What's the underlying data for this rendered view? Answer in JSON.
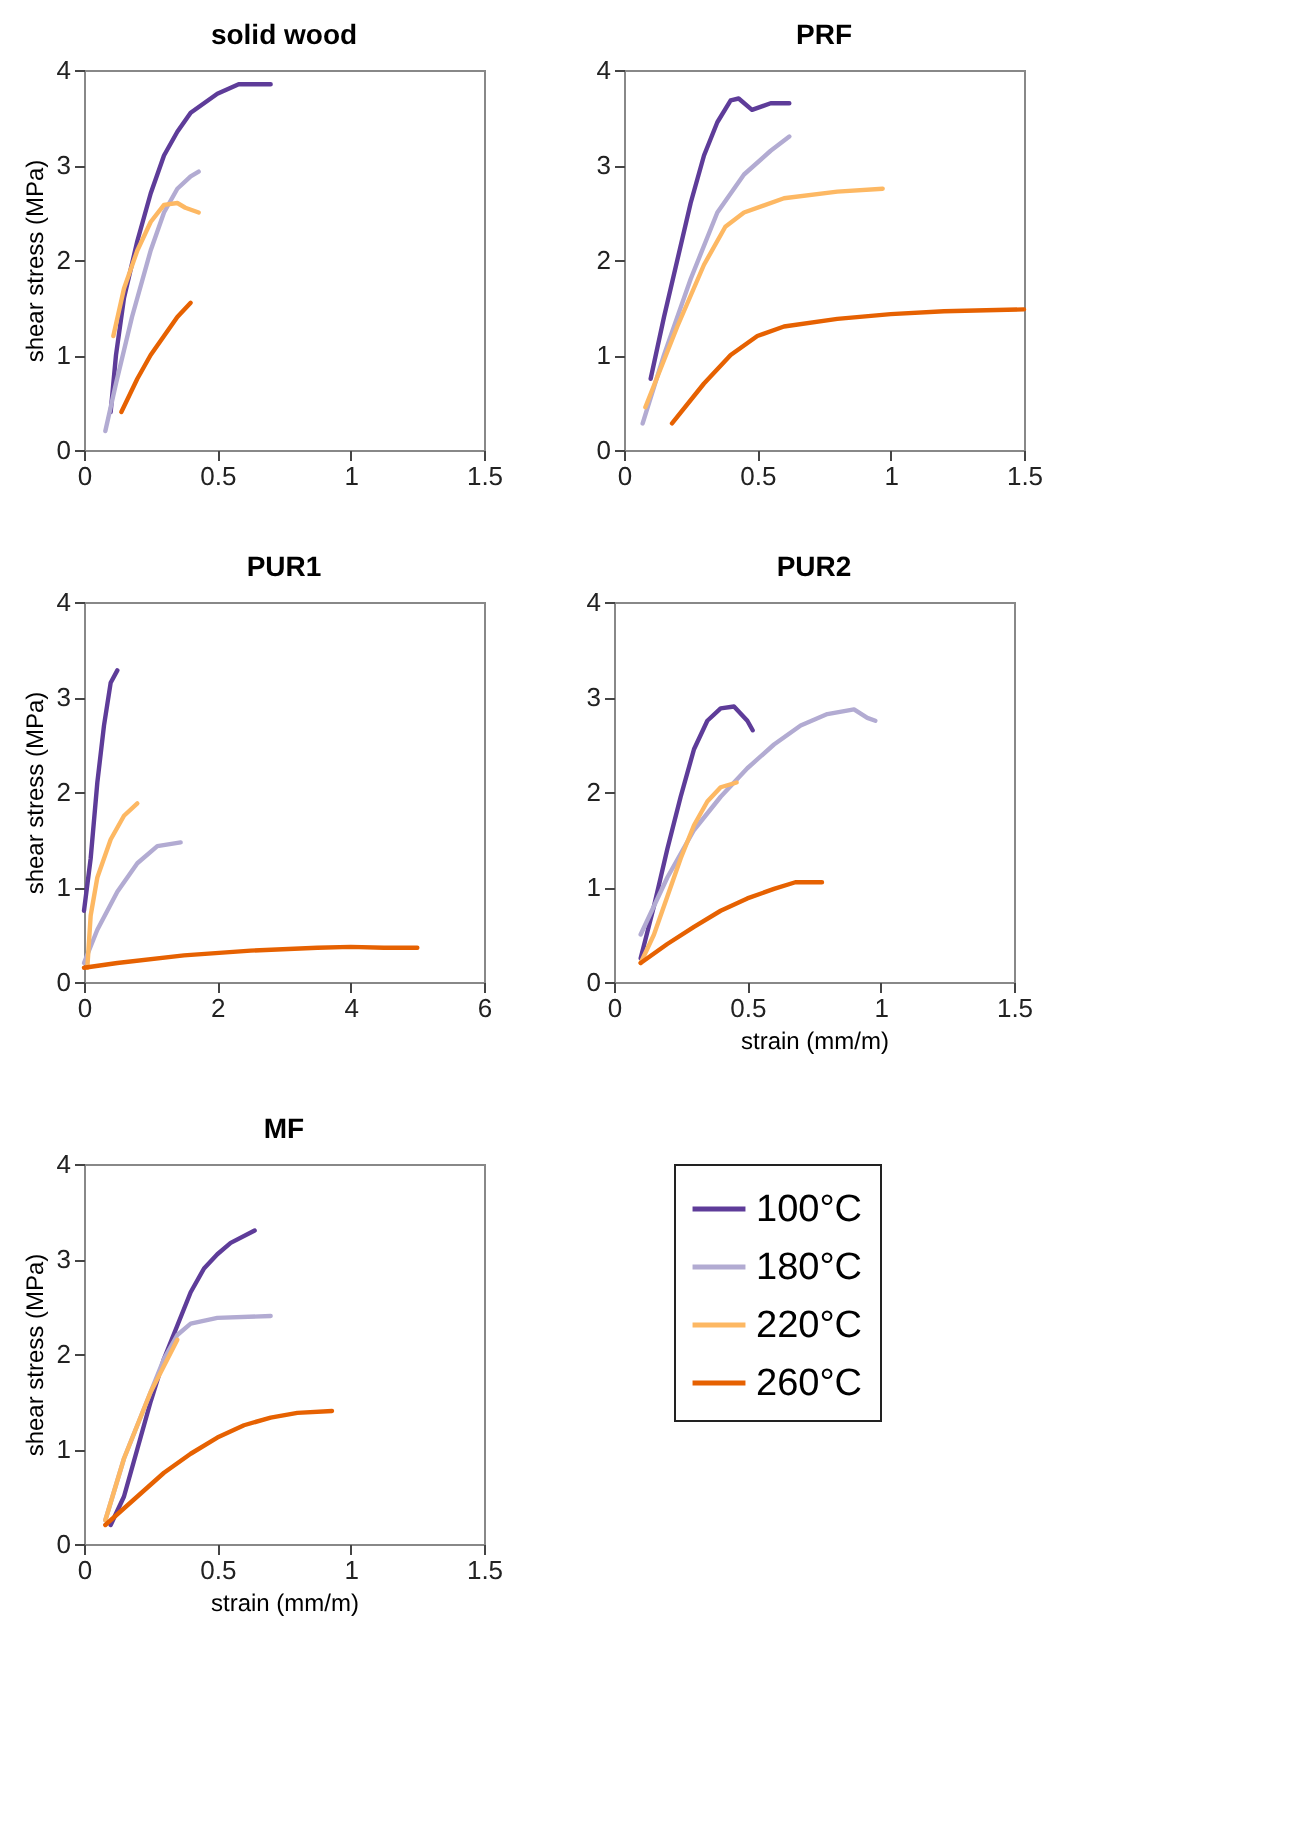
{
  "chart_data": [
    {
      "type": "line",
      "title": "solid wood",
      "ylabel": "shear stress (MPa)",
      "xlim": [
        0,
        1.5
      ],
      "xticks": [
        0,
        0.5,
        1,
        1.5
      ],
      "ylim": [
        0,
        4
      ],
      "yticks": [
        0,
        1,
        2,
        3,
        4
      ],
      "grid": false,
      "legend": false,
      "line_style": "solid",
      "series": [
        {
          "color": "#5e3c99",
          "x": [
            0.1,
            0.12,
            0.15,
            0.2,
            0.25,
            0.3,
            0.35,
            0.4,
            0.5,
            0.58,
            0.7
          ],
          "values": [
            0.4,
            1.0,
            1.6,
            2.2,
            2.7,
            3.1,
            3.35,
            3.55,
            3.75,
            3.85,
            3.85
          ]
        },
        {
          "color": "#b2abd2",
          "x": [
            0.08,
            0.12,
            0.18,
            0.25,
            0.3,
            0.35,
            0.4,
            0.43
          ],
          "values": [
            0.2,
            0.7,
            1.4,
            2.1,
            2.5,
            2.75,
            2.88,
            2.93
          ]
        },
        {
          "color": "#fdb863",
          "x": [
            0.11,
            0.15,
            0.2,
            0.25,
            0.3,
            0.35,
            0.38,
            0.43
          ],
          "values": [
            1.2,
            1.7,
            2.1,
            2.4,
            2.58,
            2.6,
            2.55,
            2.5
          ]
        },
        {
          "color": "#e66101",
          "x": [
            0.14,
            0.2,
            0.25,
            0.3,
            0.35,
            0.4
          ],
          "values": [
            0.4,
            0.75,
            1.0,
            1.2,
            1.4,
            1.55
          ]
        }
      ]
    },
    {
      "type": "line",
      "title": "PRF",
      "xlim": [
        0,
        1.5
      ],
      "xticks": [
        0,
        0.5,
        1,
        1.5
      ],
      "ylim": [
        0,
        4
      ],
      "yticks": [
        0,
        1,
        2,
        3,
        4
      ],
      "grid": false,
      "legend": false,
      "line_style": "solid",
      "series": [
        {
          "color": "#5e3c99",
          "x": [
            0.1,
            0.15,
            0.2,
            0.25,
            0.3,
            0.35,
            0.4,
            0.43,
            0.48,
            0.55,
            0.62
          ],
          "values": [
            0.75,
            1.4,
            2.0,
            2.6,
            3.1,
            3.45,
            3.68,
            3.7,
            3.58,
            3.65,
            3.65
          ]
        },
        {
          "color": "#b2abd2",
          "x": [
            0.07,
            0.15,
            0.25,
            0.35,
            0.45,
            0.55,
            0.62
          ],
          "values": [
            0.28,
            1.0,
            1.8,
            2.5,
            2.9,
            3.15,
            3.3
          ]
        },
        {
          "color": "#fdb863",
          "x": [
            0.08,
            0.2,
            0.3,
            0.38,
            0.45,
            0.6,
            0.8,
            0.97
          ],
          "values": [
            0.45,
            1.3,
            1.95,
            2.35,
            2.5,
            2.65,
            2.72,
            2.75
          ]
        },
        {
          "color": "#e66101",
          "x": [
            0.18,
            0.3,
            0.4,
            0.5,
            0.6,
            0.8,
            1.0,
            1.2,
            1.5
          ],
          "values": [
            0.28,
            0.7,
            1.0,
            1.2,
            1.3,
            1.38,
            1.43,
            1.46,
            1.48
          ]
        }
      ]
    },
    {
      "type": "line",
      "title": "PUR1",
      "ylabel": "shear stress (MPa)",
      "xlim": [
        0,
        6
      ],
      "xticks": [
        0,
        2,
        4,
        6
      ],
      "ylim": [
        0,
        4
      ],
      "yticks": [
        0,
        1,
        2,
        3,
        4
      ],
      "grid": false,
      "legend": false,
      "line_style": "solid",
      "series": [
        {
          "color": "#5e3c99",
          "x": [
            0.0,
            0.1,
            0.2,
            0.3,
            0.4,
            0.5
          ],
          "values": [
            0.75,
            1.3,
            2.1,
            2.7,
            3.15,
            3.28
          ]
        },
        {
          "color": "#b2abd2",
          "x": [
            0.0,
            0.2,
            0.5,
            0.8,
            1.1,
            1.45
          ],
          "values": [
            0.2,
            0.55,
            0.95,
            1.25,
            1.43,
            1.47
          ]
        },
        {
          "color": "#fdb863",
          "x": [
            0.05,
            0.1,
            0.2,
            0.4,
            0.6,
            0.8
          ],
          "values": [
            0.15,
            0.7,
            1.1,
            1.5,
            1.75,
            1.88
          ]
        },
        {
          "color": "#e66101",
          "x": [
            0,
            0.5,
            1.5,
            2.5,
            3.5,
            4,
            4.5,
            5
          ],
          "values": [
            0.15,
            0.2,
            0.28,
            0.33,
            0.36,
            0.37,
            0.36,
            0.36
          ]
        }
      ]
    },
    {
      "type": "line",
      "title": "PUR2",
      "xlabel": "strain (mm/m)",
      "xlim": [
        0,
        1.5
      ],
      "xticks": [
        0,
        0.5,
        1,
        1.5
      ],
      "ylim": [
        0,
        4
      ],
      "yticks": [
        0,
        1,
        2,
        3,
        4
      ],
      "grid": false,
      "legend": false,
      "line_style": "solid",
      "series": [
        {
          "color": "#5e3c99",
          "x": [
            0.1,
            0.15,
            0.2,
            0.25,
            0.3,
            0.35,
            0.4,
            0.45,
            0.5,
            0.52
          ],
          "values": [
            0.25,
            0.8,
            1.4,
            1.95,
            2.45,
            2.75,
            2.88,
            2.9,
            2.75,
            2.65
          ]
        },
        {
          "color": "#b2abd2",
          "x": [
            0.1,
            0.2,
            0.3,
            0.4,
            0.5,
            0.6,
            0.7,
            0.8,
            0.9,
            0.95,
            0.98
          ],
          "values": [
            0.5,
            1.1,
            1.6,
            1.95,
            2.25,
            2.5,
            2.7,
            2.82,
            2.87,
            2.78,
            2.75
          ]
        },
        {
          "color": "#fdb863",
          "x": [
            0.1,
            0.15,
            0.2,
            0.25,
            0.3,
            0.35,
            0.4,
            0.46
          ],
          "values": [
            0.2,
            0.5,
            0.9,
            1.3,
            1.65,
            1.9,
            2.05,
            2.1
          ]
        },
        {
          "color": "#e66101",
          "x": [
            0.1,
            0.2,
            0.3,
            0.4,
            0.5,
            0.6,
            0.68,
            0.78
          ],
          "values": [
            0.2,
            0.4,
            0.58,
            0.75,
            0.88,
            0.98,
            1.05,
            1.05
          ]
        }
      ]
    },
    {
      "type": "line",
      "title": "MF",
      "xlabel": "strain (mm/m)",
      "ylabel": "shear stress (MPa)",
      "xlim": [
        0,
        1.5
      ],
      "xticks": [
        0,
        0.5,
        1,
        1.5
      ],
      "ylim": [
        0,
        4
      ],
      "yticks": [
        0,
        1,
        2,
        3,
        4
      ],
      "grid": false,
      "legend": "right",
      "line_style": "solid",
      "series": [
        {
          "name": "100°C",
          "color": "#5e3c99",
          "x": [
            0.1,
            0.15,
            0.2,
            0.25,
            0.3,
            0.35,
            0.4,
            0.45,
            0.5,
            0.55,
            0.64
          ],
          "values": [
            0.2,
            0.5,
            1.0,
            1.5,
            1.95,
            2.3,
            2.65,
            2.9,
            3.05,
            3.17,
            3.3
          ]
        },
        {
          "name": "180°C",
          "color": "#b2abd2",
          "x": [
            0.08,
            0.15,
            0.25,
            0.3,
            0.35,
            0.4,
            0.5,
            0.7
          ],
          "values": [
            0.25,
            0.9,
            1.6,
            1.95,
            2.2,
            2.32,
            2.38,
            2.4
          ]
        },
        {
          "name": "220°C",
          "color": "#fdb863",
          "x": [
            0.08,
            0.15,
            0.25,
            0.35
          ],
          "values": [
            0.25,
            0.9,
            1.6,
            2.15
          ]
        },
        {
          "name": "260°C",
          "color": "#e66101",
          "x": [
            0.08,
            0.2,
            0.3,
            0.4,
            0.5,
            0.6,
            0.7,
            0.8,
            0.93
          ],
          "values": [
            0.2,
            0.5,
            0.75,
            0.95,
            1.12,
            1.25,
            1.33,
            1.38,
            1.4
          ]
        }
      ]
    }
  ]
}
